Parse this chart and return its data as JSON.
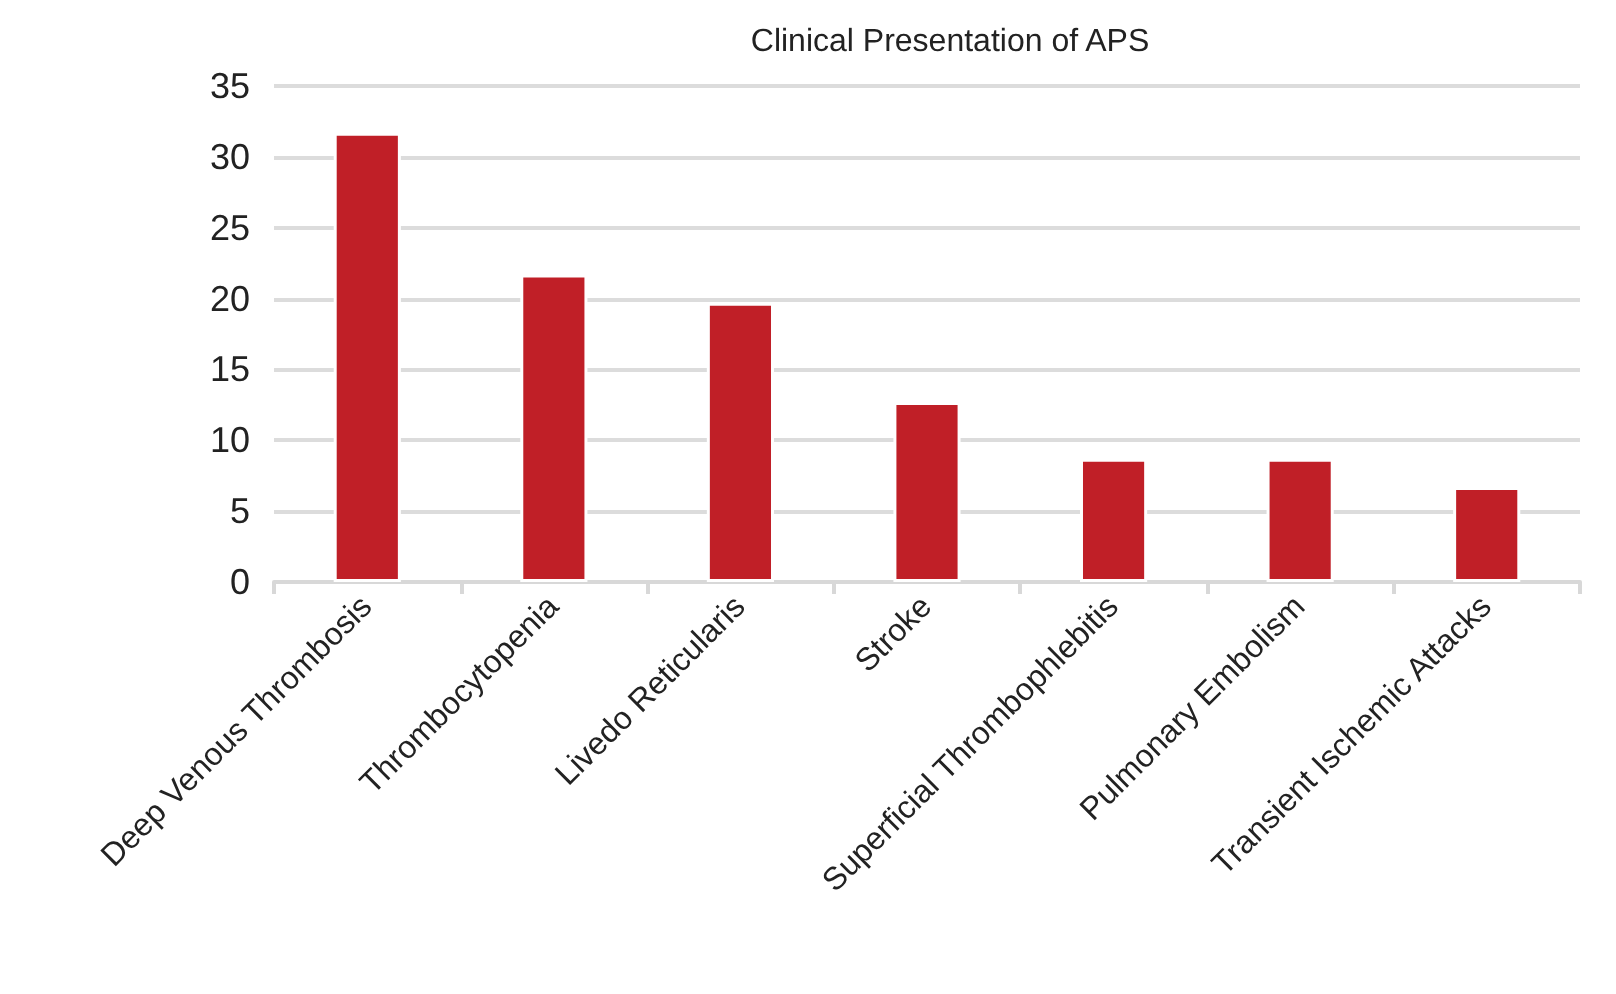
{
  "chart_data": {
    "type": "bar",
    "title": "Clinical Presentation of APS",
    "categories": [
      "Deep Venous Thrombosis",
      "Thrombocytopenia",
      "Livedo Reticularis",
      "Stroke",
      "Superficial Thrombophlebitis",
      "Pulmonary Embolism",
      "Transient Ischemic Attacks"
    ],
    "values": [
      31.7,
      21.7,
      19.7,
      12.7,
      8.7,
      8.7,
      6.7
    ],
    "color": "#c01f27",
    "ylim": [
      0,
      35
    ],
    "yticks": [
      0,
      5,
      10,
      15,
      20,
      25,
      30,
      35
    ],
    "grid": "y"
  }
}
